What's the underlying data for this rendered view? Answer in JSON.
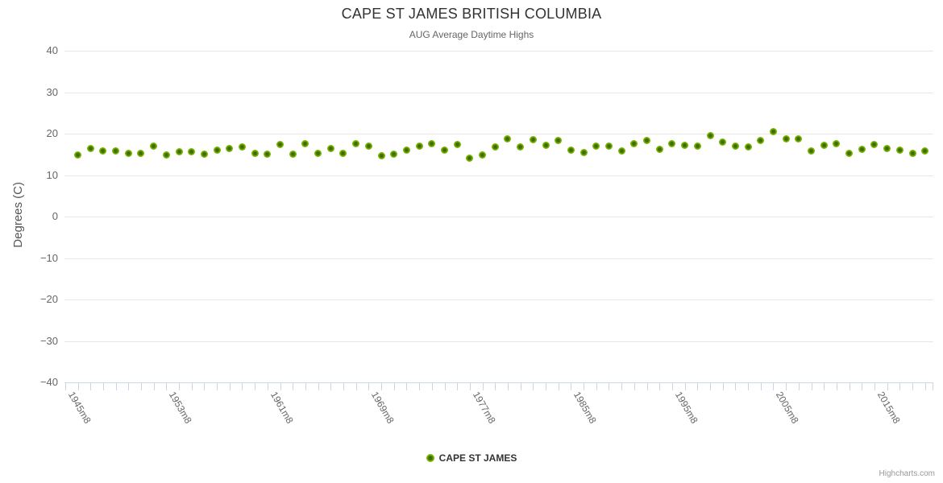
{
  "chart": {
    "title": "CAPE ST JAMES BRITISH COLUMBIA",
    "subtitle": "AUG Average Daytime Highs",
    "y_axis_title": "Degrees (C)",
    "legend_label": "CAPE ST JAMES",
    "credits": "Highcharts.com",
    "colors": {
      "point_core": "#3f6c00",
      "point_mid": "#78b300",
      "point_outer": "#8cc636",
      "grid": "#e6e6e6",
      "tick": "#ccd6eb",
      "title_text": "#333333",
      "label_text": "#666666"
    }
  },
  "chart_data": {
    "type": "scatter",
    "title": "CAPE ST JAMES BRITISH COLUMBIA",
    "subtitle": "AUG Average Daytime Highs",
    "xlabel": "",
    "ylabel": "Degrees (C)",
    "ylim": [
      -40,
      40
    ],
    "y_ticks": [
      -40,
      -30,
      -20,
      -10,
      0,
      10,
      20,
      30,
      40
    ],
    "grid": true,
    "legend_position": "bottom",
    "x_tick_labels": [
      {
        "index": 0,
        "label": "1945m8"
      },
      {
        "index": 8,
        "label": "1953m8"
      },
      {
        "index": 16,
        "label": "1961m8"
      },
      {
        "index": 24,
        "label": "1969m8"
      },
      {
        "index": 32,
        "label": "1977m8"
      },
      {
        "index": 40,
        "label": "1985m8"
      },
      {
        "index": 48,
        "label": "1995m8"
      },
      {
        "index": 56,
        "label": "2005m8"
      },
      {
        "index": 64,
        "label": "2015m8"
      }
    ],
    "series": [
      {
        "name": "CAPE ST JAMES",
        "values": [
          14.9,
          16.4,
          15.9,
          15.8,
          15.2,
          15.3,
          17.0,
          14.8,
          15.6,
          15.7,
          15.1,
          16.1,
          16.4,
          16.8,
          15.3,
          15.1,
          17.3,
          15.0,
          17.5,
          15.2,
          16.5,
          15.3,
          17.5,
          16.9,
          14.7,
          15.1,
          16.0,
          16.9,
          17.5,
          16.0,
          17.3,
          14.0,
          14.9,
          16.8,
          18.7,
          16.8,
          18.6,
          17.1,
          18.4,
          16.1,
          15.5,
          17.0,
          16.9,
          15.9,
          17.6,
          18.3,
          16.2,
          17.6,
          17.1,
          17.0,
          19.6,
          17.9,
          17.0,
          16.8,
          18.4,
          20.4,
          18.8,
          18.7,
          15.8,
          17.2,
          17.5,
          15.3,
          16.3,
          17.3,
          16.4,
          16.1,
          15.3,
          15.9
        ]
      }
    ]
  }
}
